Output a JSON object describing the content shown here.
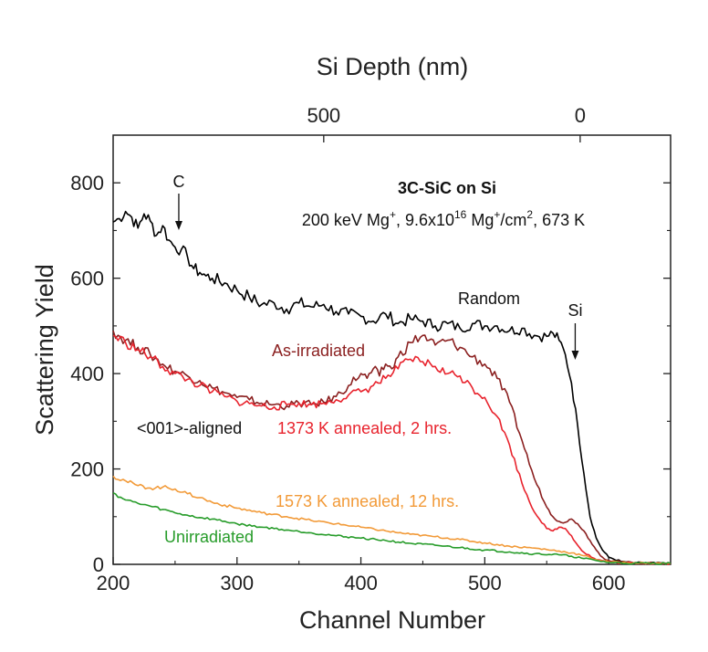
{
  "chart_data": {
    "type": "line",
    "xlabel": "Channel Number",
    "ylabel": "Scattering Yield",
    "top_axis_label": "Si Depth (nm)",
    "xlim": [
      200,
      650
    ],
    "ylim": [
      0,
      900
    ],
    "x_ticks": [
      200,
      300,
      400,
      500,
      600
    ],
    "y_ticks": [
      0,
      200,
      400,
      600,
      800
    ],
    "top_ticks": [
      {
        "label": "500",
        "channel": 370
      },
      {
        "label": "0",
        "channel": 577
      }
    ],
    "grid": false,
    "annotations": {
      "title": "3C-SiC on Si",
      "condition_parts": {
        "p1": "200 keV Mg",
        "s1": "+",
        "p2": ", 9.6x10",
        "s2": "16",
        "p3": " Mg",
        "s3": "+",
        "p4": "/cm",
        "s4": "2",
        "p5": ", 673 K"
      },
      "aligned_label": "<001>-aligned",
      "c_marker": {
        "text": "C",
        "channel": 253
      },
      "si_marker": {
        "text": "Si",
        "channel": 573
      }
    },
    "series": [
      {
        "name": "Random",
        "color": "#000000",
        "x": [
          200,
          205,
          210,
          215,
          220,
          225,
          230,
          235,
          240,
          245,
          250,
          255,
          260,
          265,
          270,
          275,
          280,
          290,
          300,
          310,
          320,
          330,
          340,
          350,
          360,
          370,
          380,
          390,
          400,
          410,
          420,
          430,
          440,
          450,
          460,
          470,
          480,
          490,
          500,
          510,
          520,
          530,
          540,
          550,
          555,
          560,
          565,
          570,
          575,
          580,
          585,
          590,
          595,
          600,
          610,
          620,
          650
        ],
        "values": [
          718,
          725,
          740,
          728,
          705,
          735,
          720,
          690,
          710,
          680,
          665,
          660,
          645,
          620,
          612,
          605,
          600,
          590,
          575,
          560,
          545,
          548,
          535,
          548,
          540,
          545,
          530,
          525,
          520,
          510,
          525,
          505,
          515,
          510,
          500,
          505,
          495,
          505,
          500,
          500,
          490,
          495,
          480,
          478,
          485,
          470,
          440,
          380,
          290,
          190,
          100,
          55,
          30,
          15,
          6,
          3,
          2
        ]
      },
      {
        "name": "As-irradiated",
        "color": "#8b2020",
        "x": [
          200,
          210,
          220,
          230,
          240,
          250,
          260,
          270,
          280,
          290,
          300,
          310,
          320,
          330,
          340,
          350,
          360,
          370,
          380,
          390,
          400,
          405,
          410,
          415,
          420,
          425,
          430,
          440,
          450,
          455,
          460,
          470,
          480,
          490,
          500,
          510,
          520,
          530,
          540,
          550,
          555,
          560,
          565,
          570,
          575,
          580,
          585,
          590,
          595,
          600,
          610,
          620,
          650
        ],
        "values": [
          490,
          470,
          455,
          440,
          420,
          405,
          395,
          385,
          370,
          360,
          350,
          345,
          338,
          335,
          332,
          338,
          335,
          340,
          352,
          375,
          400,
          390,
          410,
          395,
          420,
          410,
          435,
          465,
          480,
          470,
          460,
          470,
          455,
          435,
          420,
          390,
          340,
          260,
          180,
          120,
          100,
          90,
          88,
          95,
          85,
          70,
          50,
          30,
          15,
          8,
          5,
          3,
          2
        ]
      },
      {
        "name": "1373 K annealed, 2 hrs.",
        "color": "#e8232d",
        "x": [
          200,
          210,
          220,
          230,
          240,
          250,
          260,
          270,
          280,
          290,
          300,
          310,
          320,
          330,
          340,
          350,
          360,
          370,
          380,
          390,
          400,
          410,
          420,
          430,
          440,
          450,
          460,
          470,
          480,
          490,
          500,
          510,
          520,
          530,
          540,
          550,
          555,
          560,
          565,
          570,
          575,
          580,
          590,
          600,
          610,
          650
        ],
        "values": [
          480,
          465,
          450,
          435,
          415,
          400,
          388,
          375,
          362,
          352,
          342,
          337,
          332,
          330,
          335,
          338,
          335,
          338,
          345,
          355,
          362,
          375,
          390,
          410,
          430,
          425,
          415,
          400,
          395,
          370,
          350,
          310,
          250,
          170,
          110,
          75,
          70,
          78,
          75,
          60,
          40,
          25,
          10,
          5,
          3,
          2
        ]
      },
      {
        "name": "1573 K annealed, 12 hrs.",
        "color": "#f29a38",
        "x": [
          200,
          210,
          220,
          230,
          240,
          250,
          260,
          270,
          280,
          300,
          320,
          340,
          360,
          380,
          400,
          420,
          440,
          460,
          480,
          500,
          520,
          540,
          560,
          570,
          580,
          590,
          600,
          620,
          650
        ],
        "values": [
          185,
          175,
          165,
          160,
          162,
          158,
          148,
          140,
          130,
          118,
          108,
          100,
          92,
          85,
          78,
          70,
          63,
          58,
          52,
          45,
          38,
          34,
          28,
          24,
          18,
          10,
          5,
          3,
          2
        ]
      },
      {
        "name": "Unirradiated",
        "color": "#279c2a",
        "x": [
          200,
          210,
          220,
          230,
          240,
          250,
          260,
          270,
          280,
          300,
          320,
          340,
          360,
          380,
          400,
          420,
          440,
          460,
          480,
          500,
          520,
          540,
          560,
          570,
          580,
          590,
          600,
          620,
          650
        ],
        "values": [
          150,
          135,
          128,
          122,
          115,
          108,
          103,
          98,
          95,
          85,
          78,
          72,
          66,
          60,
          55,
          50,
          44,
          40,
          35,
          30,
          26,
          22,
          20,
          17,
          12,
          8,
          4,
          2,
          2
        ]
      }
    ],
    "label_colors": {
      "Random": "#111111",
      "As-irradiated": "#8b2020",
      "1373 K annealed, 2 hrs.": "#e8232d",
      "1573 K annealed, 12 hrs.": "#f29a38",
      "Unirradiated": "#279c2a",
      "aligned": "#111111"
    }
  }
}
